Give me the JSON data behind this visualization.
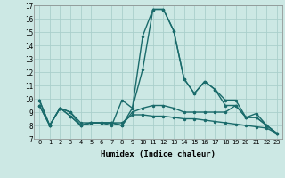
{
  "xlabel": "Humidex (Indice chaleur)",
  "ylabel": "",
  "xlim": [
    -0.5,
    23.5
  ],
  "ylim": [
    7,
    17
  ],
  "background_color": "#cce8e4",
  "grid_color": "#aacfcc",
  "line_color": "#1a6b6b",
  "series": [
    [
      9.9,
      8.0,
      9.3,
      8.7,
      8.0,
      8.2,
      8.2,
      8.0,
      9.9,
      9.3,
      14.7,
      16.7,
      16.7,
      15.1,
      11.5,
      10.4,
      11.3,
      10.7,
      9.9,
      9.9,
      8.6,
      8.6,
      8.0,
      7.4
    ],
    [
      9.9,
      8.0,
      9.3,
      8.7,
      8.0,
      8.2,
      8.2,
      8.2,
      8.0,
      9.3,
      12.2,
      16.7,
      16.7,
      15.1,
      11.5,
      10.4,
      11.3,
      10.7,
      9.5,
      9.5,
      8.6,
      8.6,
      8.0,
      7.4
    ],
    [
      9.5,
      8.0,
      9.3,
      9.0,
      8.0,
      8.2,
      8.2,
      8.2,
      8.0,
      9.0,
      9.3,
      9.5,
      9.5,
      9.3,
      9.0,
      9.0,
      9.0,
      9.0,
      9.0,
      9.5,
      8.6,
      8.9,
      8.0,
      7.4
    ],
    [
      9.5,
      8.0,
      9.3,
      9.0,
      8.2,
      8.2,
      8.2,
      8.2,
      8.2,
      8.8,
      8.8,
      8.7,
      8.7,
      8.6,
      8.5,
      8.5,
      8.4,
      8.3,
      8.2,
      8.1,
      8.0,
      7.9,
      7.8,
      7.4
    ]
  ],
  "xtick_labels": [
    "0",
    "1",
    "2",
    "3",
    "4",
    "5",
    "6",
    "7",
    "8",
    "9",
    "10",
    "11",
    "12",
    "13",
    "14",
    "15",
    "16",
    "17",
    "18",
    "19",
    "20",
    "21",
    "22",
    "23"
  ],
  "ytick_labels": [
    "7",
    "8",
    "9",
    "10",
    "11",
    "12",
    "13",
    "14",
    "15",
    "16",
    "17"
  ],
  "marker": ".",
  "marker_size": 3,
  "line_width": 1.0
}
